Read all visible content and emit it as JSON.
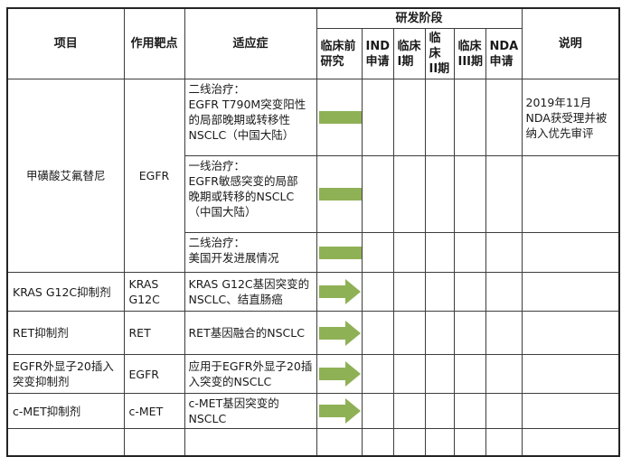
{
  "header": {
    "project": "项目",
    "target": "作用靶点",
    "indication": "适应症",
    "phase_group": "研发阶段",
    "stages": {
      "preclinical": "临床前\n研究",
      "ind": "IND\n申请",
      "p1": "临床\nI期",
      "p2": "临床\nII期",
      "p3": "临床\nIII期",
      "nda": "NDA\n申请"
    },
    "notes": "说明"
  },
  "colors": {
    "arrow_green": "#8fb155",
    "grid_line": "#3d3d3d",
    "outer_border": "#242424",
    "text": "#1a1a1a",
    "background": "#ffffff"
  },
  "projects": [
    {
      "name": "甲磺酸艾氟替尼",
      "target": "EGFR",
      "entries": [
        {
          "indication": "二线治疗：\nEGFR T790M突变阳性\n的局部晚期或转移性\nNSCLC（中国大陆）",
          "stage_reached": "nda",
          "note": "2019年11月\nNDA获受理并被\n纳入优先审评"
        },
        {
          "indication": "一线治疗：\nEGFR敏感突变的局部\n晚期或转移的NSCLC\n（中国大陆）",
          "stage_reached": "p3",
          "note": ""
        },
        {
          "indication": "二线治疗：\n美国开发进展情况",
          "stage_reached": "ind",
          "note": ""
        }
      ]
    },
    {
      "name": "KRAS G12C抑制剂",
      "target": "KRAS\nG12C",
      "entries": [
        {
          "indication": "KRAS G12C基因突变的\nNSCLC、结直肠癌",
          "stage_reached": "preclinical",
          "note": ""
        }
      ]
    },
    {
      "name": "RET抑制剂",
      "target": "RET",
      "entries": [
        {
          "indication": "RET基因融合的NSCLC",
          "stage_reached": "preclinical",
          "note": ""
        }
      ]
    },
    {
      "name": "EGFR外显子20插入\n突变抑制剂",
      "target": "EGFR",
      "entries": [
        {
          "indication": "应用于EGFR外显子20插\n入突变的NSCLC",
          "stage_reached": "preclinical",
          "note": ""
        }
      ]
    },
    {
      "name": "c-MET抑制剂",
      "target": "c-MET",
      "entries": [
        {
          "indication": "c-MET基因突变的\nNSCLC",
          "stage_reached": "preclinical",
          "note": ""
        }
      ]
    }
  ]
}
